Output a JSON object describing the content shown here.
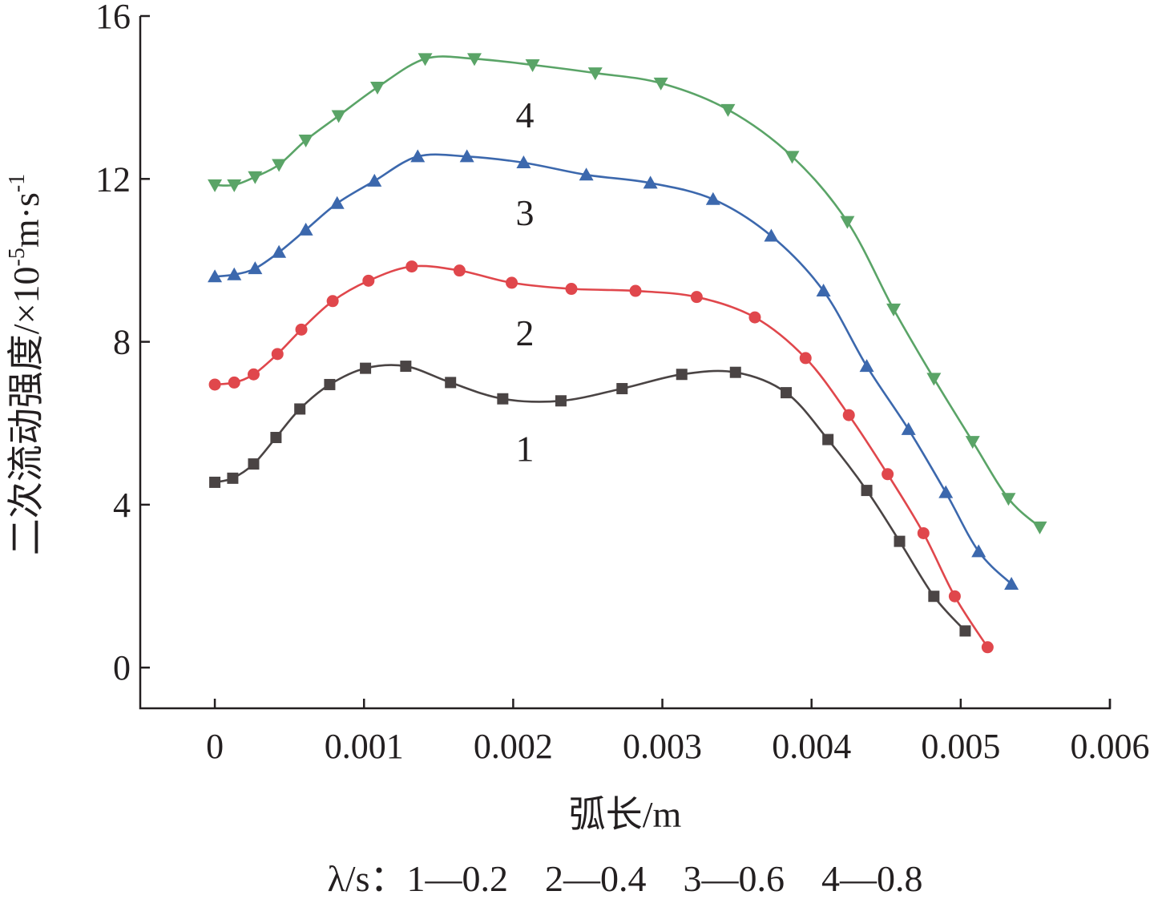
{
  "chart_data": {
    "type": "line",
    "xlabel": "弧长/m",
    "ylabel": "二次流动强度/×10",
    "ylabel_sup": "-5",
    "ylabel_unit": "m·s",
    "ylabel_unit_sup": "-1",
    "xlim": [
      -0.0005,
      0.006
    ],
    "ylim": [
      -1,
      16
    ],
    "x_ticks": [
      "0",
      "0.001",
      "0.002",
      "0.003",
      "0.004",
      "0.005",
      "0.006"
    ],
    "x_tick_values": [
      0,
      0.001,
      0.002,
      0.003,
      0.004,
      0.005,
      0.006
    ],
    "y_ticks": [
      "0",
      "4",
      "8",
      "12",
      "16"
    ],
    "y_tick_values": [
      0,
      4,
      8,
      12,
      16
    ],
    "grid": false,
    "legend_text": "λ/s：1—0.2　2—0.4　3—0.6　4—0.8",
    "series": [
      {
        "name": "1",
        "color": "#4a4444",
        "marker": "square",
        "x": [
          0,
          0.00012,
          0.00026,
          0.00041,
          0.00057,
          0.00077,
          0.00101,
          0.00128,
          0.00158,
          0.00193,
          0.00232,
          0.00273,
          0.00313,
          0.00349,
          0.00383,
          0.00411,
          0.00437,
          0.00459,
          0.00482,
          0.00503
        ],
        "y": [
          4.55,
          4.65,
          5.0,
          5.65,
          6.35,
          6.95,
          7.35,
          7.4,
          7.0,
          6.6,
          6.55,
          6.85,
          7.2,
          7.25,
          6.75,
          5.6,
          4.35,
          3.1,
          1.75,
          0.9
        ]
      },
      {
        "name": "2",
        "color": "#e0474c",
        "marker": "circle",
        "x": [
          0,
          0.00013,
          0.00026,
          0.00042,
          0.00058,
          0.00079,
          0.00103,
          0.00132,
          0.00164,
          0.00199,
          0.00239,
          0.00282,
          0.00323,
          0.00362,
          0.00396,
          0.00425,
          0.00451,
          0.00475,
          0.00496,
          0.00518
        ],
        "y": [
          6.95,
          7.0,
          7.2,
          7.7,
          8.3,
          9.0,
          9.5,
          9.85,
          9.75,
          9.45,
          9.3,
          9.25,
          9.1,
          8.6,
          7.6,
          6.2,
          4.75,
          3.3,
          1.75,
          0.5
        ]
      },
      {
        "name": "3",
        "color": "#3c68ad",
        "marker": "triangle-up",
        "x": [
          0,
          0.00013,
          0.00027,
          0.00043,
          0.00061,
          0.00082,
          0.00107,
          0.00136,
          0.00169,
          0.00207,
          0.00249,
          0.00292,
          0.00334,
          0.00373,
          0.00408,
          0.00437,
          0.00465,
          0.0049,
          0.00512,
          0.00534
        ],
        "y": [
          9.6,
          9.65,
          9.8,
          10.2,
          10.75,
          11.4,
          11.95,
          12.55,
          12.55,
          12.4,
          12.1,
          11.9,
          11.5,
          10.6,
          9.25,
          7.4,
          5.85,
          4.3,
          2.85,
          2.05
        ]
      },
      {
        "name": "4",
        "color": "#5aa467",
        "marker": "triangle-down",
        "x": [
          0,
          0.00013,
          0.00027,
          0.00043,
          0.00061,
          0.00083,
          0.00109,
          0.00141,
          0.00174,
          0.00213,
          0.00255,
          0.00299,
          0.00344,
          0.00387,
          0.00424,
          0.00455,
          0.00482,
          0.00508,
          0.00532,
          0.00553
        ],
        "y": [
          11.85,
          11.85,
          12.05,
          12.35,
          12.95,
          13.55,
          14.25,
          14.95,
          14.95,
          14.8,
          14.6,
          14.35,
          13.7,
          12.55,
          10.95,
          8.8,
          7.1,
          5.55,
          4.15,
          3.45
        ]
      }
    ]
  }
}
